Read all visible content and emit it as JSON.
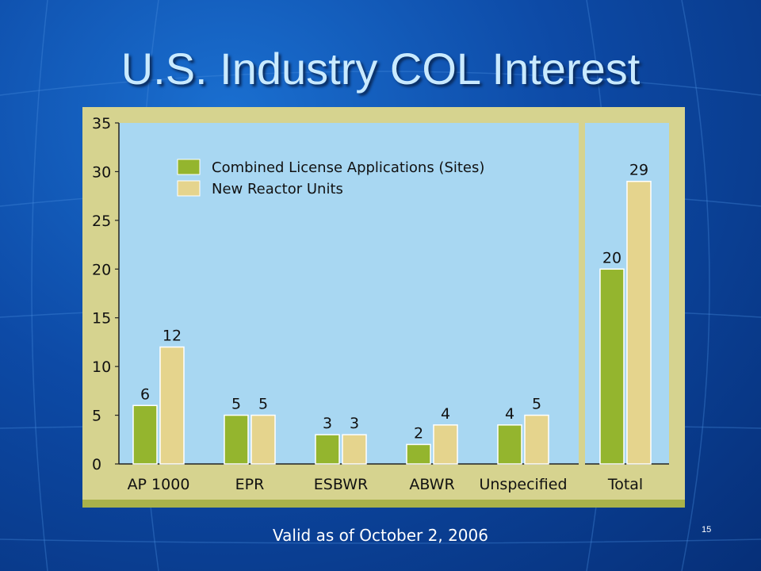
{
  "slide": {
    "title": "U.S. Industry COL Interest",
    "footer": "Valid as of October 2, 2006",
    "page_number": "15"
  },
  "chart_data": {
    "type": "bar",
    "categories": [
      "AP 1000",
      "EPR",
      "ESBWR",
      "ABWR",
      "Unspecified",
      "Total"
    ],
    "series": [
      {
        "name": "Combined License Applications (Sites)",
        "values": [
          6,
          5,
          3,
          2,
          4,
          20
        ],
        "color": "#94b52e"
      },
      {
        "name": "New Reactor Units",
        "values": [
          12,
          5,
          3,
          4,
          5,
          29
        ],
        "color": "#e5d48d"
      }
    ],
    "yticks": [
      0,
      5,
      10,
      15,
      20,
      25,
      30,
      35
    ],
    "ylim": [
      0,
      35
    ],
    "title": "",
    "xlabel": "",
    "ylabel": "",
    "legend_position": "top-left",
    "grid": false,
    "colors": {
      "plot_bg": "#a8d7f2",
      "frame_bg": "#d6d38f",
      "frame_bottom": "#a9b24a"
    }
  }
}
